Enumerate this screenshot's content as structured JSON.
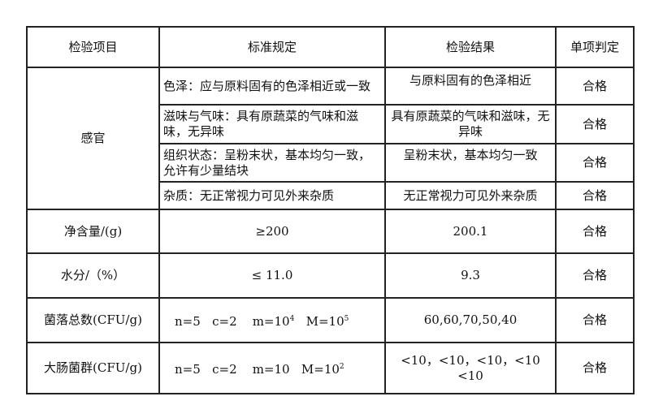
{
  "headers": [
    "检验项目",
    "标准规定",
    "检验结果",
    "单项判定"
  ],
  "sensory": {
    "label": "感官",
    "rows": [
      {
        "standard": "色泽：应与原料固有的色泽相近或一致",
        "result": "与原料固有的色泽相近",
        "verdict": "合格"
      },
      {
        "standard": "滋味与气味：具有原蔬菜的气味和滋味，无异味",
        "result": "具有原蔬菜的气味和滋味，无异味",
        "verdict": "合格"
      },
      {
        "standard": "组织状态：呈粉末状，基本均匀一致，允许有少量结块",
        "result": "呈粉末状，基本均匀一致",
        "verdict": "合格"
      },
      {
        "standard": "杂质：无正常视力可见外来杂质",
        "result": "无正常视力可见外来杂质",
        "verdict": "合格"
      }
    ]
  },
  "rows": [
    {
      "item": "净含量/(g)",
      "standard": "≥200",
      "result": "200.1",
      "verdict": "合格"
    },
    {
      "item": "水分/（%）",
      "standard": "≤ 11.0",
      "result": "9.3",
      "verdict": "合格"
    }
  ],
  "colony": {
    "item": "菌落总数(CFU/g)",
    "n": "n=5",
    "c": "c=2",
    "m": "m=10",
    "m_exp": "4",
    "M": "M=10",
    "M_exp": "5",
    "result": "60,60,70,50,40",
    "verdict": "合格"
  },
  "coliform": {
    "item": "大肠菌群(CFU/g)",
    "n": "n=5",
    "c": "c=2",
    "m": "m=10",
    "M": "M=10",
    "M_exp": "2",
    "result": "<10，<10，<10，<10 <10",
    "verdict": "合格"
  }
}
